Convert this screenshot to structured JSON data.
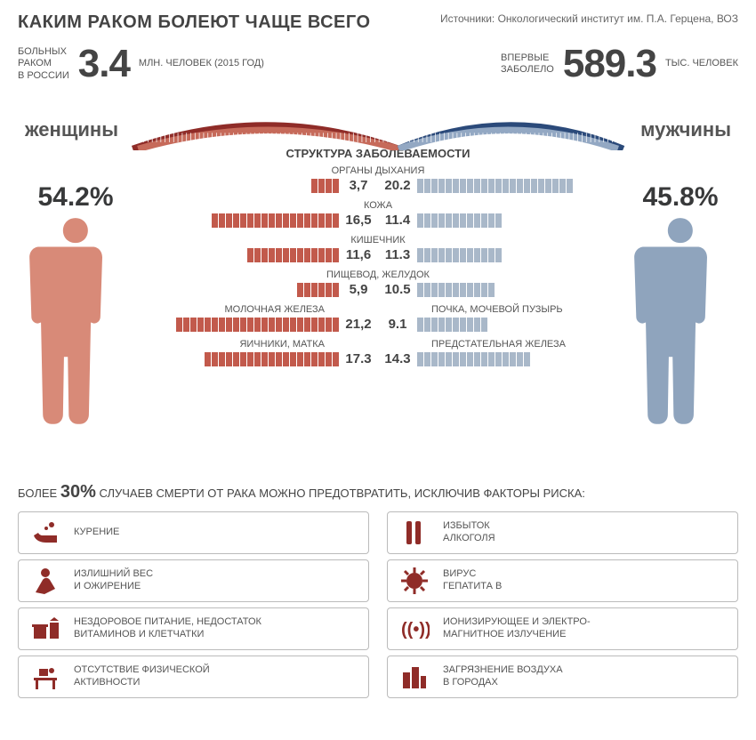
{
  "title": "КАКИМ РАКОМ БОЛЕЮТ ЧАЩЕ ВСЕГО",
  "source": "Источники: Онкологический институт им. П.А. Герцена, ВОЗ",
  "stat_left": {
    "pre": "БОЛЬНЫХ\nРАКОМ\nВ РОССИИ",
    "big": "3.4",
    "suf": "МЛН. ЧЕЛОВЕК  (2015 ГОД)"
  },
  "stat_right": {
    "pre": "ВПЕРВЫЕ\nЗАБОЛЕЛО",
    "big": "589.3",
    "suf": "ТЫС. ЧЕЛОВЕК"
  },
  "gender_f": "женщины",
  "gender_m": "мужчины",
  "pct_f": "54.2%",
  "pct_m": "45.8%",
  "center_title": "СТРУКТУРА ЗАБОЛЕВАЕМОСТИ",
  "colors": {
    "female_bar": "#c25a4c",
    "male_bar": "#a9b8c9",
    "female_body": "#d88a78",
    "male_body": "#8fa4bd",
    "arc_f_outer": "#8f2c28",
    "arc_f_inner": "#c66a5a",
    "arc_m_outer": "#2b4a7a",
    "arc_m_inner": "#93a8c3",
    "risk_icon": "#8f2c28"
  },
  "max_value": 22,
  "rows": [
    {
      "label_f": "",
      "label_c": "ОРГАНЫ ДЫХАНИЯ",
      "label_m": "",
      "f": 3.7,
      "m": 20.2,
      "fs": "3,7",
      "ms": "20.2"
    },
    {
      "label_f": "",
      "label_c": "КОЖА",
      "label_m": "",
      "f": 16.5,
      "m": 11.4,
      "fs": "16,5",
      "ms": "11.4"
    },
    {
      "label_f": "",
      "label_c": "КИШЕЧНИК",
      "label_m": "",
      "f": 11.6,
      "m": 11.3,
      "fs": "11,6",
      "ms": "11.3"
    },
    {
      "label_f": "",
      "label_c": "ПИЩЕВОД, ЖЕЛУДОК",
      "label_m": "",
      "f": 5.9,
      "m": 10.5,
      "fs": "5,9",
      "ms": "10.5"
    },
    {
      "label_f": "МОЛОЧНАЯ ЖЕЛЕЗА",
      "label_c": "",
      "label_m": "ПОЧКА, МОЧЕВОЙ ПУЗЫРЬ",
      "f": 21.2,
      "m": 9.1,
      "fs": "21,2",
      "ms": "9.1"
    },
    {
      "label_f": "ЯИЧНИКИ, МАТКА",
      "label_c": "",
      "label_m": "ПРЕДСТАТЕЛЬНАЯ ЖЕЛЕЗА",
      "f": 17.3,
      "m": 14.3,
      "fs": "17.3",
      "ms": "14.3"
    }
  ],
  "footer_pre": "БОЛЕЕ",
  "footer_pct": "30%",
  "footer_post": "СЛУЧАЕВ СМЕРТИ ОТ РАКА МОЖНО ПРЕДОТВРАТИТЬ, ИСКЛЮЧИВ  ФАКТОРЫ РИСКА:",
  "risks_left": [
    {
      "icon": "pipe",
      "text": "КУРЕНИЕ"
    },
    {
      "icon": "weight",
      "text": "ИЗЛИШНИЙ ВЕС\nИ ОЖИРЕНИЕ"
    },
    {
      "icon": "food",
      "text": "НЕЗДОРОВОЕ ПИТАНИЕ, НЕДОСТАТОК\nВИТАМИНОВ И КЛЕТЧАТКИ"
    },
    {
      "icon": "desk",
      "text": "ОТСУТСТВИЕ ФИЗИЧЕСКОЙ\nАКТИВНОСТИ"
    }
  ],
  "risks_right": [
    {
      "icon": "bottles",
      "text": "ИЗБЫТОК\nАЛКОГОЛЯ"
    },
    {
      "icon": "virus",
      "text": "ВИРУС\nГЕПАТИТА В"
    },
    {
      "icon": "radiation",
      "text": "ИОНИЗИРУЮЩЕЕ И ЭЛЕКТРО-\nМАГНИТНОЕ ИЗЛУЧЕНИЕ"
    },
    {
      "icon": "city",
      "text": "ЗАГРЯЗНЕНИЕ ВОЗДУХА\nВ ГОРОДАХ"
    }
  ]
}
